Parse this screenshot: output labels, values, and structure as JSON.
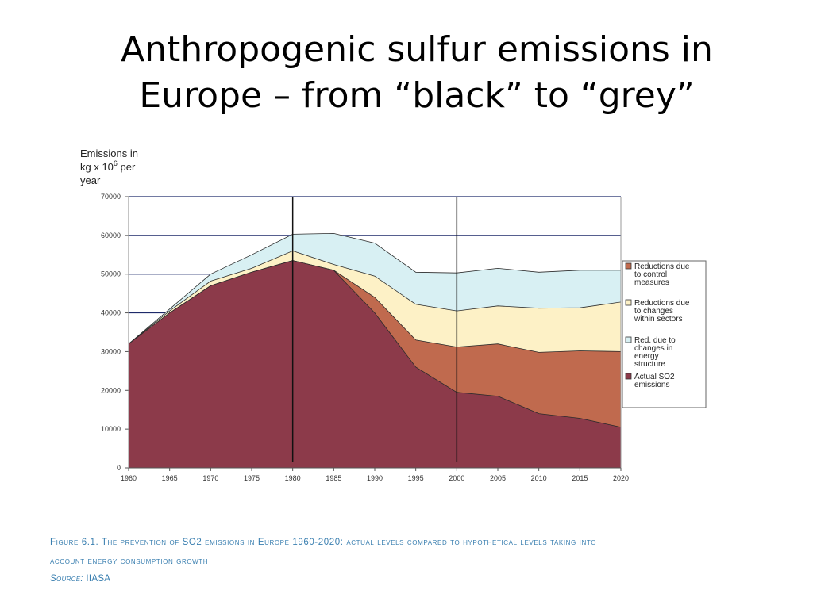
{
  "slide": {
    "title_line1": "Anthropogenic sulfur emissions in",
    "title_line2": "Europe – from “black” to “grey”"
  },
  "caption": {
    "line1": "Figure 6.1. The prevention of SO2 emissions in Europe 1960-2020: actual levels compared to hypothetical levels taking into",
    "line2": "account energy consumption growth",
    "source_label": "Source:",
    "source_value": " IIASA"
  },
  "chart_data": {
    "type": "area",
    "stacked": true,
    "ylabel_lines": [
      "Emissions in",
      "kg x 10",
      "year"
    ],
    "ylabel_superscript": "6",
    "ylabel_suffix": " per",
    "x": [
      1960,
      1965,
      1970,
      1975,
      1980,
      1985,
      1990,
      1995,
      2000,
      2005,
      2010,
      2015,
      2020
    ],
    "x_tick_labels": [
      "1960",
      "1965",
      "1970",
      "1975",
      "1980",
      "1985",
      "1990",
      "1995",
      "2000",
      "2005",
      "2010",
      "2015",
      "2020"
    ],
    "y_ticks": [
      0,
      10000,
      20000,
      30000,
      40000,
      50000,
      60000,
      70000
    ],
    "y_tick_labels": [
      "0",
      "10000",
      "20000",
      "30000",
      "40000",
      "50000",
      "60000",
      "70000"
    ],
    "xlim": [
      1960,
      2020
    ],
    "ylim": [
      0,
      70000
    ],
    "vertical_markers": [
      1980,
      2000
    ],
    "grid": "horizontal",
    "legend_position": "right",
    "series": [
      {
        "name": "Actual SO2 emissions",
        "color": "#8c3a4a",
        "cumulative": [
          32000,
          40000,
          47000,
          50500,
          53500,
          51000,
          40000,
          26000,
          19500,
          18500,
          14000,
          12800,
          10500
        ]
      },
      {
        "name": "Reductions due to control measures",
        "color": "#c06a4e",
        "cumulative": [
          32000,
          40000,
          47000,
          50500,
          53500,
          51000,
          44000,
          33000,
          31200,
          32000,
          29800,
          30200,
          30000
        ]
      },
      {
        "name": "Reductions due to changes within sectors",
        "color": "#fdf1c6",
        "cumulative": [
          32000,
          40500,
          48200,
          51500,
          56000,
          52500,
          49500,
          42200,
          40500,
          41800,
          41200,
          41300,
          42800
        ]
      },
      {
        "name": "Red. due to changes in energy structure",
        "color": "#d8f0f3",
        "cumulative": [
          32000,
          41000,
          50000,
          55000,
          60300,
          60500,
          58000,
          50500,
          50300,
          51500,
          50500,
          51000,
          51000
        ]
      }
    ],
    "legend": [
      {
        "label_lines": [
          "Reductions due",
          "to control",
          "measures"
        ],
        "color": "#c06a4e"
      },
      {
        "label_lines": [
          "Reductions due",
          "to changes",
          "within sectors"
        ],
        "color": "#fdf1c6"
      },
      {
        "label_lines": [
          "Red. due to",
          "changes in",
          "energy",
          "structure"
        ],
        "color": "#d8f0f3"
      },
      {
        "label_lines": [
          "Actual SO2",
          "emissions"
        ],
        "color": "#8c3a4a"
      }
    ]
  }
}
